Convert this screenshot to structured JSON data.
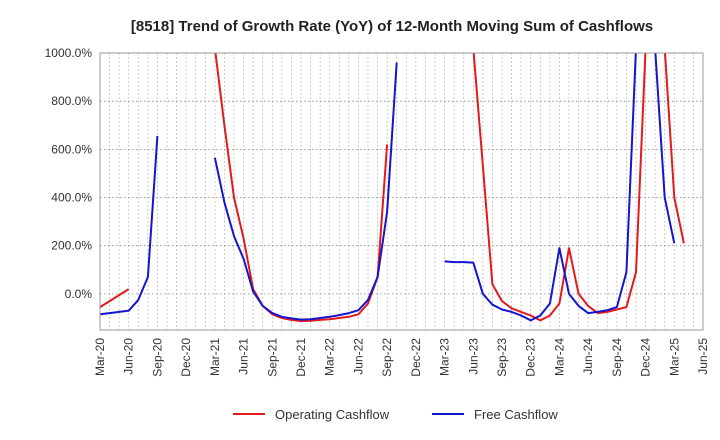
{
  "chart_data": {
    "type": "line",
    "title": "[8518]  Trend of Growth Rate (YoY) of 12-Month Moving Sum of Cashflows",
    "xlabel": "",
    "ylabel": "",
    "ylim": [
      -150,
      1000
    ],
    "y_ticks": [
      0,
      200,
      400,
      600,
      800,
      1000
    ],
    "y_tick_labels": [
      "0.0%",
      "200.0%",
      "400.0%",
      "600.0%",
      "800.0%",
      "1000.0%"
    ],
    "x_ticks": [
      "2020-03",
      "2020-06",
      "2020-09",
      "2020-12",
      "2021-03",
      "2021-06",
      "2021-09",
      "2021-12",
      "2022-03",
      "2022-06",
      "2022-09",
      "2022-12",
      "2023-03",
      "2023-06",
      "2023-09",
      "2023-12",
      "2024-03",
      "2024-06",
      "2024-09",
      "2024-12",
      "2025-03",
      "2025-06"
    ],
    "x_tick_labels": [
      "Mar-20",
      "Jun-20",
      "Sep-20",
      "Dec-20",
      "Mar-21",
      "Jun-21",
      "Sep-21",
      "Dec-21",
      "Mar-22",
      "Jun-22",
      "Sep-22",
      "Dec-22",
      "Mar-23",
      "Jun-23",
      "Sep-23",
      "Dec-23",
      "Mar-24",
      "Jun-24",
      "Sep-24",
      "Dec-24",
      "Mar-25",
      "Jun-25"
    ],
    "grid": true,
    "legend_position": "bottom-center",
    "series": [
      {
        "name": "Operating Cashflow",
        "color": "#e31a1c",
        "points": [
          [
            "2020-03",
            -55
          ],
          [
            "2020-04",
            -30
          ],
          [
            "2020-05",
            -5
          ],
          [
            "2020-06",
            20
          ],
          null,
          [
            "2021-03",
            1050
          ],
          [
            "2021-04",
            700
          ],
          [
            "2021-05",
            400
          ],
          [
            "2021-06",
            230
          ],
          [
            "2021-07",
            20
          ],
          [
            "2021-08",
            -50
          ],
          [
            "2021-09",
            -85
          ],
          [
            "2021-10",
            -100
          ],
          [
            "2021-11",
            -108
          ],
          [
            "2021-12",
            -113
          ],
          [
            "2022-01",
            -112
          ],
          [
            "2022-02",
            -108
          ],
          [
            "2022-03",
            -105
          ],
          [
            "2022-04",
            -100
          ],
          [
            "2022-05",
            -95
          ],
          [
            "2022-06",
            -85
          ],
          [
            "2022-07",
            -40
          ],
          [
            "2022-08",
            70
          ],
          [
            "2022-09",
            620
          ],
          null,
          [
            "2023-06",
            1050
          ],
          [
            "2023-07",
            530
          ],
          [
            "2023-08",
            40
          ],
          [
            "2023-09",
            -30
          ],
          [
            "2023-10",
            -60
          ],
          [
            "2023-11",
            -75
          ],
          [
            "2023-12",
            -90
          ],
          [
            "2024-01",
            -110
          ],
          [
            "2024-02",
            -90
          ],
          [
            "2024-03",
            -40
          ],
          [
            "2024-04",
            190
          ],
          [
            "2024-05",
            0
          ],
          [
            "2024-06",
            -50
          ],
          [
            "2024-07",
            -80
          ],
          [
            "2024-08",
            -75
          ],
          [
            "2024-09",
            -65
          ],
          [
            "2024-10",
            -55
          ],
          [
            "2024-11",
            90
          ],
          [
            "2024-12",
            1050
          ],
          null,
          [
            "2025-02",
            1050
          ],
          [
            "2025-03",
            400
          ],
          [
            "2025-04",
            210
          ]
        ]
      },
      {
        "name": "Free Cashflow",
        "color": "#1515cc",
        "points": [
          [
            "2020-03",
            -85
          ],
          [
            "2020-04",
            -80
          ],
          [
            "2020-05",
            -75
          ],
          [
            "2020-06",
            -70
          ],
          [
            "2020-07",
            -25
          ],
          [
            "2020-08",
            70
          ],
          [
            "2020-09",
            655
          ],
          null,
          [
            "2021-03",
            565
          ],
          [
            "2021-04",
            380
          ],
          [
            "2021-05",
            240
          ],
          [
            "2021-06",
            145
          ],
          [
            "2021-07",
            10
          ],
          [
            "2021-08",
            -50
          ],
          [
            "2021-09",
            -80
          ],
          [
            "2021-10",
            -95
          ],
          [
            "2021-11",
            -102
          ],
          [
            "2021-12",
            -107
          ],
          [
            "2022-01",
            -105
          ],
          [
            "2022-02",
            -100
          ],
          [
            "2022-03",
            -95
          ],
          [
            "2022-04",
            -88
          ],
          [
            "2022-05",
            -80
          ],
          [
            "2022-06",
            -68
          ],
          [
            "2022-07",
            -25
          ],
          [
            "2022-08",
            70
          ],
          [
            "2022-09",
            340
          ],
          [
            "2022-10",
            960
          ],
          null,
          [
            "2023-03",
            135
          ],
          [
            "2023-04",
            132
          ],
          [
            "2023-05",
            132
          ],
          [
            "2023-06",
            130
          ],
          [
            "2023-07",
            0
          ],
          [
            "2023-08",
            -45
          ],
          [
            "2023-09",
            -65
          ],
          [
            "2023-10",
            -75
          ],
          [
            "2023-11",
            -90
          ],
          [
            "2023-12",
            -110
          ],
          [
            "2024-01",
            -90
          ],
          [
            "2024-02",
            -40
          ],
          [
            "2024-03",
            190
          ],
          [
            "2024-04",
            0
          ],
          [
            "2024-05",
            -50
          ],
          [
            "2024-06",
            -80
          ],
          [
            "2024-07",
            -75
          ],
          [
            "2024-08",
            -68
          ],
          [
            "2024-09",
            -55
          ],
          [
            "2024-10",
            90
          ],
          [
            "2024-11",
            1050
          ],
          null,
          [
            "2025-01",
            1050
          ],
          [
            "2025-02",
            400
          ],
          [
            "2025-03",
            210
          ]
        ]
      }
    ]
  }
}
